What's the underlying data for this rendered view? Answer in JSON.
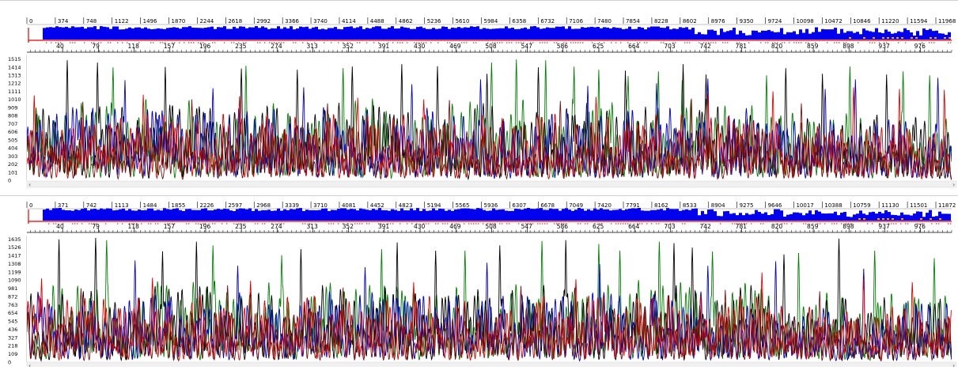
{
  "chart_data": [
    {
      "type": "line",
      "overview_ticks": [
        "0",
        "374",
        "748",
        "1122",
        "1496",
        "1870",
        "2244",
        "2618",
        "2992",
        "3366",
        "3740",
        "4114",
        "4488",
        "4862",
        "5236",
        "5610",
        "5984",
        "6358",
        "6732",
        "7106",
        "7480",
        "7854",
        "8228",
        "8602",
        "8976",
        "9350",
        "9724",
        "10098",
        "10472",
        "10846",
        "11220",
        "11594",
        "11968"
      ],
      "base_ticks": [
        40,
        79,
        118,
        157,
        196,
        235,
        274,
        313,
        352,
        391,
        430,
        469,
        508,
        547,
        586,
        625,
        664,
        703,
        742,
        781,
        820,
        859,
        898,
        937,
        976
      ],
      "y_ticks": [
        1515,
        1414,
        1313,
        1212,
        1111,
        1010,
        909,
        808,
        707,
        606,
        505,
        404,
        303,
        202,
        101,
        0
      ],
      "x_range": [
        1,
        1010
      ],
      "y_range": [
        0,
        1560
      ],
      "series": [
        {
          "color": "#008000",
          "peaks": [
            [
              95,
              1410
            ],
            [
              240,
              1430
            ],
            [
              346,
              1400
            ],
            [
              508,
              1470
            ],
            [
              535,
              1510
            ],
            [
              567,
              1500
            ],
            [
              598,
              1420
            ],
            [
              625,
              1380
            ],
            [
              657,
              1300
            ],
            [
              690,
              1360
            ],
            [
              716,
              1250
            ],
            [
              808,
              1310
            ],
            [
              899,
              1420
            ],
            [
              957,
              1360
            ],
            [
              986,
              1310
            ]
          ],
          "seed": 11,
          "mean": 760
        },
        {
          "color": "#000000",
          "peaks": [
            [
              45,
              1500
            ],
            [
              78,
              1470
            ],
            [
              152,
              1415
            ],
            [
              235,
              1395
            ],
            [
              296,
              1380
            ],
            [
              356,
              1420
            ],
            [
              410,
              1450
            ],
            [
              449,
              1425
            ],
            [
              503,
              1330
            ],
            [
              559,
              1410
            ],
            [
              654,
              1370
            ],
            [
              717,
              1450
            ],
            [
              742,
              1320
            ],
            [
              829,
              1400
            ],
            [
              869,
              1330
            ],
            [
              939,
              1320
            ]
          ],
          "seed": 23,
          "mean": 720
        },
        {
          "color": "#0000cc",
          "peaks": [
            [
              108,
              1250
            ],
            [
              204,
              1150
            ],
            [
              303,
              1160
            ],
            [
              421,
              1200
            ],
            [
              496,
              1260
            ],
            [
              613,
              1180
            ],
            [
              688,
              1210
            ],
            [
              744,
              1270
            ],
            [
              872,
              1140
            ],
            [
              905,
              1260
            ],
            [
              995,
              1280
            ]
          ],
          "seed": 37,
          "mean": 680
        },
        {
          "color": "#e00000",
          "peaks": [
            [
              9,
              1060
            ],
            [
              128,
              1070
            ],
            [
              233,
              1050
            ],
            [
              362,
              1030
            ],
            [
              434,
              1010
            ],
            [
              622,
              1040
            ],
            [
              744,
              1080
            ],
            [
              815,
              1110
            ],
            [
              903,
              1160
            ],
            [
              953,
              1140
            ],
            [
              1002,
              1130
            ]
          ],
          "seed": 53,
          "mean": 640
        },
        {
          "color": "#7a0f0f",
          "peaks": [
            [
              62,
              980
            ],
            [
              181,
              1010
            ],
            [
              329,
              960
            ],
            [
              462,
              1000
            ],
            [
              583,
              990
            ],
            [
              726,
              1020
            ],
            [
              846,
              960
            ]
          ],
          "seed": 71,
          "mean": 520
        }
      ],
      "overview_colors": {
        "bar": "#0000ee",
        "baseline": "#e00000",
        "dots": "#cc0000",
        "tail": "#ffa500"
      }
    },
    {
      "type": "line",
      "overview_ticks": [
        "0",
        "371",
        "742",
        "1113",
        "1484",
        "1855",
        "2226",
        "2597",
        "2968",
        "3339",
        "3710",
        "4081",
        "4452",
        "4823",
        "5194",
        "5565",
        "5936",
        "6307",
        "6678",
        "7049",
        "7420",
        "7791",
        "8162",
        "8533",
        "8904",
        "9275",
        "9646",
        "10017",
        "10388",
        "10759",
        "11130",
        "11501",
        "11872"
      ],
      "base_ticks": [
        40,
        79,
        118,
        157,
        196,
        235,
        274,
        313,
        352,
        391,
        430,
        469,
        508,
        547,
        586,
        625,
        664,
        703,
        742,
        781,
        820,
        859,
        898,
        937,
        976
      ],
      "y_ticks": [
        1635,
        1526,
        1417,
        1308,
        1199,
        1090,
        981,
        872,
        763,
        654,
        545,
        436,
        327,
        218,
        109,
        0
      ],
      "x_range": [
        1,
        1010
      ],
      "y_range": [
        0,
        1680
      ],
      "series": [
        {
          "color": "#008000",
          "peaks": [
            [
              88,
              1620
            ],
            [
              204,
              1550
            ],
            [
              279,
              1420
            ],
            [
              388,
              1500
            ],
            [
              479,
              1480
            ],
            [
              563,
              1610
            ],
            [
              625,
              1570
            ],
            [
              648,
              1480
            ],
            [
              691,
              1600
            ],
            [
              749,
              1470
            ],
            [
              843,
              1450
            ],
            [
              926,
              1480
            ],
            [
              991,
              1380
            ]
          ],
          "seed": 101,
          "mean": 820
        },
        {
          "color": "#000000",
          "peaks": [
            [
              36,
              1630
            ],
            [
              76,
              1650
            ],
            [
              149,
              1470
            ],
            [
              186,
              1600
            ],
            [
              300,
              1500
            ],
            [
              405,
              1590
            ],
            [
              447,
              1480
            ],
            [
              517,
              1550
            ],
            [
              589,
              1620
            ],
            [
              707,
              1580
            ],
            [
              727,
              1520
            ],
            [
              827,
              1430
            ],
            [
              887,
              1640
            ]
          ],
          "seed": 113,
          "mean": 760
        },
        {
          "color": "#0000cc",
          "peaks": [
            [
              119,
              1350
            ],
            [
              231,
              1280
            ],
            [
              370,
              1260
            ],
            [
              503,
              1320
            ],
            [
              626,
              1300
            ],
            [
              744,
              1280
            ],
            [
              818,
              1340
            ],
            [
              914,
              1240
            ]
          ],
          "seed": 127,
          "mean": 700
        },
        {
          "color": "#e00000",
          "peaks": [
            [
              17,
              1110
            ],
            [
              138,
              1120
            ],
            [
              245,
              1080
            ],
            [
              423,
              1060
            ],
            [
              600,
              1100
            ],
            [
              803,
              1190
            ],
            [
              914,
              1100
            ],
            [
              967,
              1060
            ]
          ],
          "seed": 139,
          "mean": 660
        },
        {
          "color": "#7a0f0f",
          "peaks": [
            [
              60,
              980
            ],
            [
              220,
              1020
            ],
            [
              346,
              990
            ],
            [
              540,
              1010
            ],
            [
              763,
              960
            ],
            [
              866,
              940
            ]
          ],
          "seed": 149,
          "mean": 540
        }
      ],
      "overview_colors": {
        "bar": "#0000ee",
        "baseline": "#e00000",
        "dots": "#cc0000",
        "tail": "#ffa500"
      }
    }
  ]
}
